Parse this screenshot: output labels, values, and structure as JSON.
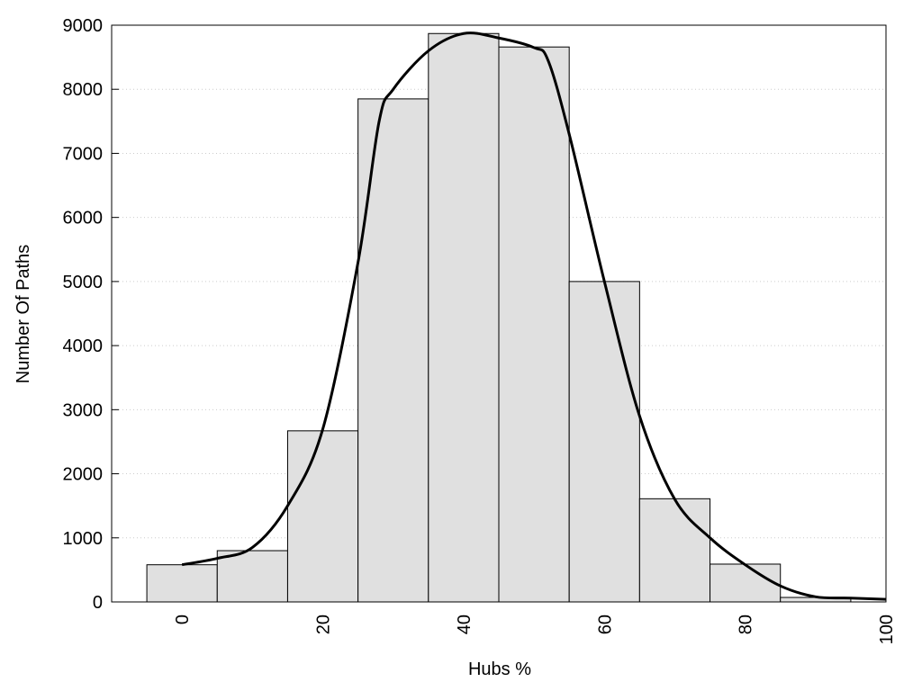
{
  "chart_data": {
    "type": "histogram",
    "xlabel": "Hubs %",
    "ylabel": "Number Of Paths",
    "bins": [
      -5,
      5,
      15,
      25,
      35,
      45,
      55,
      65,
      75,
      85,
      95
    ],
    "counts": [
      580,
      800,
      2670,
      7850,
      8870,
      8660,
      5000,
      1610,
      590,
      70
    ],
    "color": "#e0e0e0",
    "curve": {
      "color": "#000000",
      "x": [
        0,
        5,
        10,
        15,
        20,
        25,
        28,
        30,
        35,
        40,
        45,
        50,
        52,
        55,
        60,
        65,
        70,
        75,
        80,
        85,
        90,
        95,
        100
      ],
      "values": [
        580,
        680,
        850,
        1500,
        2700,
        5300,
        7500,
        8000,
        8600,
        8870,
        8800,
        8650,
        8450,
        7300,
        5000,
        2900,
        1600,
        1000,
        580,
        250,
        80,
        60,
        40
      ]
    },
    "xlim": [
      -10,
      100
    ],
    "ylim": [
      0,
      9000
    ],
    "xticks": [
      0,
      20,
      40,
      60,
      80,
      100
    ],
    "yticks": [
      0,
      1000,
      2000,
      3000,
      4000,
      5000,
      6000,
      7000,
      8000,
      9000
    ],
    "grid": true
  }
}
